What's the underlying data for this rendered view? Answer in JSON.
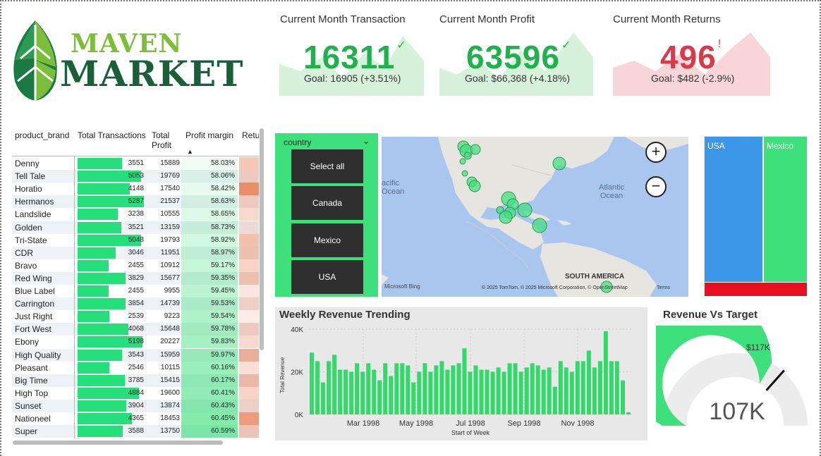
{
  "brand": {
    "line1": "MAVEN",
    "line2": "MARKET"
  },
  "kpis": {
    "transactions": {
      "title": "Current Month Transaction",
      "value": "16311",
      "status": "✓",
      "goal": "Goal: 16905 (+3.51%)",
      "color": "#1fb24c",
      "spark_color": "#d6f2da"
    },
    "profit": {
      "title": "Current Month Profit",
      "value": "63596",
      "status": "✓",
      "goal": "Goal: $66,368 (+4.18%)",
      "color": "#1fb24c",
      "spark_color": "#d6f2da"
    },
    "returns": {
      "title": "Current Month Returns",
      "value": "496",
      "status": "!",
      "goal": "Goal: $482 (-2.9%)",
      "color": "#d83a4a",
      "spark_color": "#f7d5d9"
    }
  },
  "table": {
    "columns": [
      "product_brand",
      "Total Transactions",
      "Total Profit",
      "Profit margin",
      "Retu"
    ],
    "rows": [
      {
        "brand": "Denny",
        "tx": 3551,
        "profit": 15889,
        "margin": "58.03%",
        "ret": 0.45
      },
      {
        "brand": "Tell Tale",
        "tx": 5053,
        "profit": 19769,
        "margin": "58.06%",
        "ret": 0.35
      },
      {
        "brand": "Horatio",
        "tx": 4148,
        "profit": 17540,
        "margin": "58.42%",
        "ret": 0.9
      },
      {
        "brand": "Hermanos",
        "tx": 5287,
        "profit": 21537,
        "margin": "58.63%",
        "ret": 0.35
      },
      {
        "brand": "Landslide",
        "tx": 3238,
        "profit": 10555,
        "margin": "58.65%",
        "ret": 0.3
      },
      {
        "brand": "Golden",
        "tx": 3521,
        "profit": 13159,
        "margin": "58.73%",
        "ret": 0.2
      },
      {
        "brand": "Tri-State",
        "tx": 5048,
        "profit": 19793,
        "margin": "58.92%",
        "ret": 0.5
      },
      {
        "brand": "CDR",
        "tx": 3046,
        "profit": 11951,
        "margin": "58.97%",
        "ret": 0.45
      },
      {
        "brand": "Bravo",
        "tx": 2455,
        "profit": 10912,
        "margin": "59.17%",
        "ret": 0.35
      },
      {
        "brand": "Red Wing",
        "tx": 3829,
        "profit": 15677,
        "margin": "59.35%",
        "ret": 0.45
      },
      {
        "brand": "Blue Label",
        "tx": 2455,
        "profit": 9955,
        "margin": "59.45%",
        "ret": 0.2
      },
      {
        "brand": "Carrington",
        "tx": 3854,
        "profit": 14739,
        "margin": "59.53%",
        "ret": 0.3
      },
      {
        "brand": "Just Right",
        "tx": 2539,
        "profit": 9223,
        "margin": "59.54%",
        "ret": 0.15
      },
      {
        "brand": "Fort West",
        "tx": 4068,
        "profit": 15648,
        "margin": "59.78%",
        "ret": 0.35
      },
      {
        "brand": "Ebony",
        "tx": 5198,
        "profit": 20227,
        "margin": "59.83%",
        "ret": 0.3
      },
      {
        "brand": "High Quality",
        "tx": 3543,
        "profit": 15959,
        "margin": "59.97%",
        "ret": 0.6
      },
      {
        "brand": "Pleasant",
        "tx": 2546,
        "profit": 10115,
        "margin": "60.16%",
        "ret": 0.25
      },
      {
        "brand": "Big Time",
        "tx": 3785,
        "profit": 15415,
        "margin": "60.17%",
        "ret": 0.5
      },
      {
        "brand": "High Top",
        "tx": 4884,
        "profit": 19600,
        "margin": "60.41%",
        "ret": 0.35
      },
      {
        "brand": "Sunset",
        "tx": 3904,
        "profit": 13874,
        "margin": "60.43%",
        "ret": 0.3
      },
      {
        "brand": "Nationeel",
        "tx": 4365,
        "profit": 18453,
        "margin": "60.45%",
        "ret": 0.8
      },
      {
        "brand": "Super",
        "tx": 3588,
        "profit": 13750,
        "margin": "60.59%",
        "ret": 0.4
      }
    ]
  },
  "slicer": {
    "caption": "country",
    "chevron": "chevron-down-icon",
    "options": [
      "Select all",
      "Canada",
      "Mexico",
      "USA"
    ]
  },
  "map": {
    "labels": {
      "ocean_left": "acific\nOcean",
      "ocean_right": "Atlantic\nOcean",
      "continent": "SOUTH AMERICA",
      "bing": "Microsoft Bing",
      "copyright": "© 2025 TomTom, © 2025 Microsoft Corporation, © OpenStreetMap",
      "terms": "Terms"
    },
    "zoom_in": "+",
    "zoom_out": "−"
  },
  "treemap": {
    "items": [
      {
        "name": "USA",
        "color": "#3b97e8"
      },
      {
        "name": "Mexico",
        "color": "#3ee07c"
      },
      {
        "name": "Canada",
        "color": "#e81020"
      }
    ]
  },
  "weekly": {
    "title": "Weekly Revenue Trending",
    "chart_data": {
      "type": "bar",
      "title": "Weekly Revenue Trending",
      "xlabel": "Start of Week",
      "ylabel": "Total Revenue",
      "ylim": [
        0,
        40000
      ],
      "y_ticks": [
        "0K",
        "20K",
        "40K"
      ],
      "x_ticks": [
        "Mar 1998",
        "May 1998",
        "Jul 1998",
        "Sep 1998",
        "Nov 1998"
      ],
      "values": [
        29000,
        25000,
        15000,
        25000,
        28000,
        21000,
        21000,
        20000,
        24000,
        20000,
        24000,
        21000,
        16000,
        24000,
        18000,
        24000,
        24000,
        23000,
        15000,
        20000,
        24000,
        20000,
        23000,
        25000,
        21000,
        23000,
        24000,
        31000,
        20000,
        23000,
        21000,
        21000,
        20000,
        22000,
        20000,
        24000,
        24000,
        20000,
        22000,
        24000,
        23000,
        21000,
        22000,
        13000,
        25000,
        22000,
        20000,
        25000,
        25000,
        30000,
        22000,
        25000,
        39000,
        25000,
        25000,
        16000,
        1000
      ],
      "color": "#34d96c"
    }
  },
  "gauge": {
    "title": "Revenue Vs Target",
    "value_label": "107K",
    "target_label": "$117K",
    "value": 107,
    "target": 117,
    "max": 160,
    "fill_color": "#3ee07c",
    "track_color": "#ececec"
  }
}
